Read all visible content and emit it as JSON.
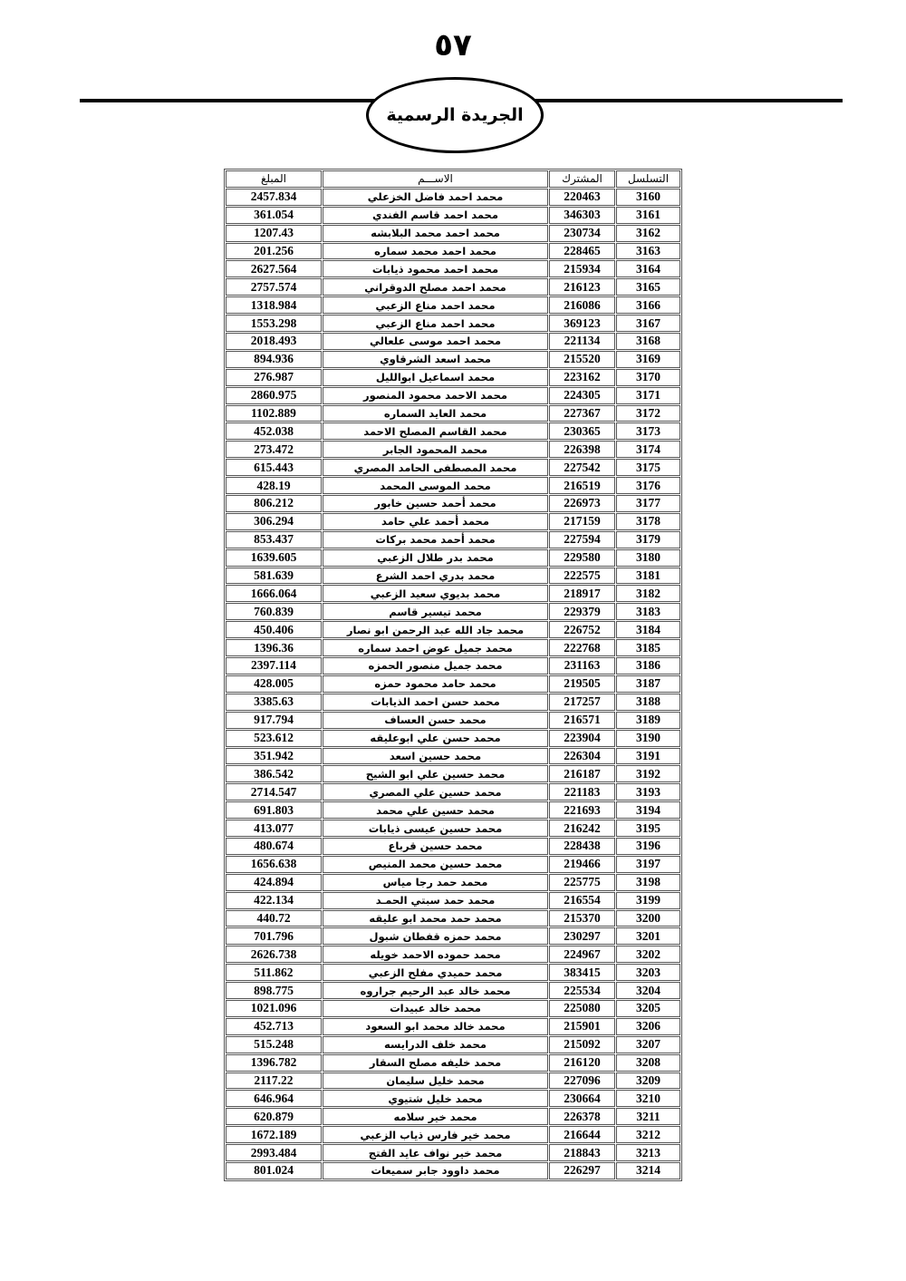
{
  "page_number": "٥٧",
  "header_title": "الجريدة الرسمية",
  "table": {
    "headers": {
      "serial": "التسلسل",
      "subscriber": "المشترك",
      "name": "الاســـم",
      "amount": "المبلغ"
    },
    "rows": [
      [
        "3160",
        "220463",
        "محمد احمد فاضل الخزعلي",
        "2457.834"
      ],
      [
        "3161",
        "346303",
        "محمد احمد قاسم الفندي",
        "361.054"
      ],
      [
        "3162",
        "230734",
        "محمد احمد محمد البلابشه",
        "1207.43"
      ],
      [
        "3163",
        "228465",
        "محمد احمد محمد سماره",
        "201.256"
      ],
      [
        "3164",
        "215934",
        "محمد احمد محمود ذيابات",
        "2627.564"
      ],
      [
        "3165",
        "216123",
        "محمد احمد مصلح الدوقراني",
        "2757.574"
      ],
      [
        "3166",
        "216086",
        "محمد احمد مناع الزعبي",
        "1318.984"
      ],
      [
        "3167",
        "369123",
        "محمد احمد مناع الزعبي",
        "1553.298"
      ],
      [
        "3168",
        "221134",
        "محمد احمد موسى  علعالي",
        "2018.493"
      ],
      [
        "3169",
        "215520",
        "محمد اسعد الشرقاوي",
        "894.936"
      ],
      [
        "3170",
        "223162",
        "محمد اسماعيل ابوالليل",
        "276.987"
      ],
      [
        "3171",
        "224305",
        "محمد الاحمد محمود المنصور",
        "2860.975"
      ],
      [
        "3172",
        "227367",
        "محمد العايد السماره",
        "1102.889"
      ],
      [
        "3173",
        "230365",
        "محمد القاسم المصلح الاحمد",
        "452.038"
      ],
      [
        "3174",
        "226398",
        "محمد المحمود الجابر",
        "273.472"
      ],
      [
        "3175",
        "227542",
        "محمد المصطفى الحامد المصري",
        "615.443"
      ],
      [
        "3176",
        "216519",
        "محمد الموسى المحمد",
        "428.19"
      ],
      [
        "3177",
        "226973",
        "محمد أحمد حسين خابور",
        "806.212"
      ],
      [
        "3178",
        "217159",
        "محمد أحمد علي حامد",
        "306.294"
      ],
      [
        "3179",
        "227594",
        "محمد أحمد محمد بركات",
        "853.437"
      ],
      [
        "3180",
        "229580",
        "محمد بدر  طلال  الزعبي",
        "1639.605"
      ],
      [
        "3181",
        "222575",
        "محمد بدري احمد الشرع",
        "581.639"
      ],
      [
        "3182",
        "218917",
        "محمد بديوي سعيد الزعبي",
        "1666.064"
      ],
      [
        "3183",
        "229379",
        "محمد تيسير قاسم",
        "760.839"
      ],
      [
        "3184",
        "226752",
        "محمد جاد الله عبد الرحمن ابو نصار",
        "450.406"
      ],
      [
        "3185",
        "222768",
        "محمد جميل عوض احمد سماره",
        "1396.36"
      ],
      [
        "3186",
        "231163",
        "محمد جميل منصور الحمزه",
        "2397.114"
      ],
      [
        "3187",
        "219505",
        "محمد حامد محمود حمزه",
        "428.005"
      ],
      [
        "3188",
        "217257",
        "محمد حسن احمد الذيابات",
        "3385.63"
      ],
      [
        "3189",
        "216571",
        "محمد حسن العساف",
        "917.794"
      ],
      [
        "3190",
        "223904",
        "محمد حسن علي ابوعليقه",
        "523.612"
      ],
      [
        "3191",
        "226304",
        "محمد حسين اسعد",
        "351.942"
      ],
      [
        "3192",
        "216187",
        "محمد حسين علي ابو الشيح",
        "386.542"
      ],
      [
        "3193",
        "221183",
        "محمد حسين علي المصري",
        "2714.547"
      ],
      [
        "3194",
        "221693",
        "محمد حسين علي محمد",
        "691.803"
      ],
      [
        "3195",
        "216242",
        "محمد حسين عيسى ذيابات",
        "413.077"
      ],
      [
        "3196",
        "228438",
        "محمد حسين قرباع",
        "480.674"
      ],
      [
        "3197",
        "219466",
        "محمد حسين محمد المنيص",
        "1656.638"
      ],
      [
        "3198",
        "225775",
        "محمد حمد رجا مياس",
        "424.894"
      ],
      [
        "3199",
        "216554",
        "محمد حمد سبتي الحمـد",
        "422.134"
      ],
      [
        "3200",
        "215370",
        "محمد حمد محمد ابو عليقه",
        "440.72"
      ],
      [
        "3201",
        "230297",
        "محمد حمزه  قفطان  شبول",
        "701.796"
      ],
      [
        "3202",
        "224967",
        "محمد حموده الاحمد خويله",
        "2626.738"
      ],
      [
        "3203",
        "383415",
        "محمد حميدي مفلح الزعبي",
        "511.862"
      ],
      [
        "3204",
        "225534",
        "محمد خالد عبد الرحيم جراروه",
        "898.775"
      ],
      [
        "3205",
        "225080",
        "محمد خالد عبيدات",
        "1021.096"
      ],
      [
        "3206",
        "215901",
        "محمد خالد محمد ابو السعود",
        "452.713"
      ],
      [
        "3207",
        "215092",
        "محمد خلف  الدرايسه",
        "515.248"
      ],
      [
        "3208",
        "216120",
        "محمد خليفه مصلح السقار",
        "1396.782"
      ],
      [
        "3209",
        "227096",
        "محمد خليل سليمان",
        "2117.22"
      ],
      [
        "3210",
        "230664",
        "محمد خليل شتيوي",
        "646.964"
      ],
      [
        "3211",
        "226378",
        "محمد خير سلامه",
        "620.879"
      ],
      [
        "3212",
        "216644",
        "محمد خير فارس ذياب الزعبي",
        "1672.189"
      ],
      [
        "3213",
        "218843",
        "محمد خير نواف عايد القتج",
        "2993.484"
      ],
      [
        "3214",
        "226297",
        "محمد داوود جابر سميعات",
        "801.024"
      ]
    ]
  }
}
